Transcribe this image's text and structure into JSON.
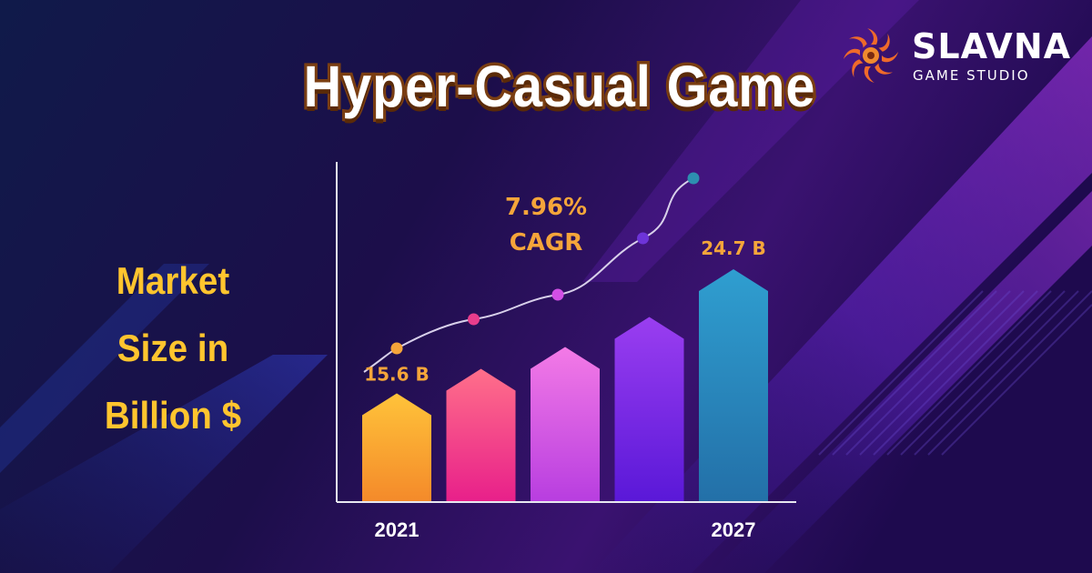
{
  "title": "Hyper-Casual Game",
  "brand": {
    "name": "SLAVNA",
    "subtitle": "GAME STUDIO",
    "logo_icon": "sun-swirl-icon"
  },
  "side_label_lines": [
    "Market",
    "Size in",
    "Billion $"
  ],
  "colors": {
    "background": "#140a3a",
    "label_yellow": "#ffc52e",
    "annotation_orange": "#f5a53a",
    "bars": [
      "#f7a535",
      "#f2468f",
      "#e04ee6",
      "#7a2ce8",
      "#2a8fbf"
    ],
    "trend_points": [
      "#f5a53a",
      "#e83d8c",
      "#d24fe6",
      "#6d34d8",
      "#2d8fb0"
    ]
  },
  "chart_data": {
    "type": "bar",
    "title": "",
    "xlabel": "",
    "ylabel": "Market Size in Billion $",
    "x_tick_labels": [
      "2021",
      "2027"
    ],
    "values_labeled": {
      "first": "15.6 B",
      "last": "24.7 B"
    },
    "values": [
      15.6,
      17.4,
      19.0,
      21.2,
      24.7
    ],
    "ylim": [
      0,
      26
    ],
    "annotation": {
      "line1": "7.96%",
      "line2": "CAGR"
    },
    "trend_line": true,
    "grid": false,
    "legend": "none"
  }
}
